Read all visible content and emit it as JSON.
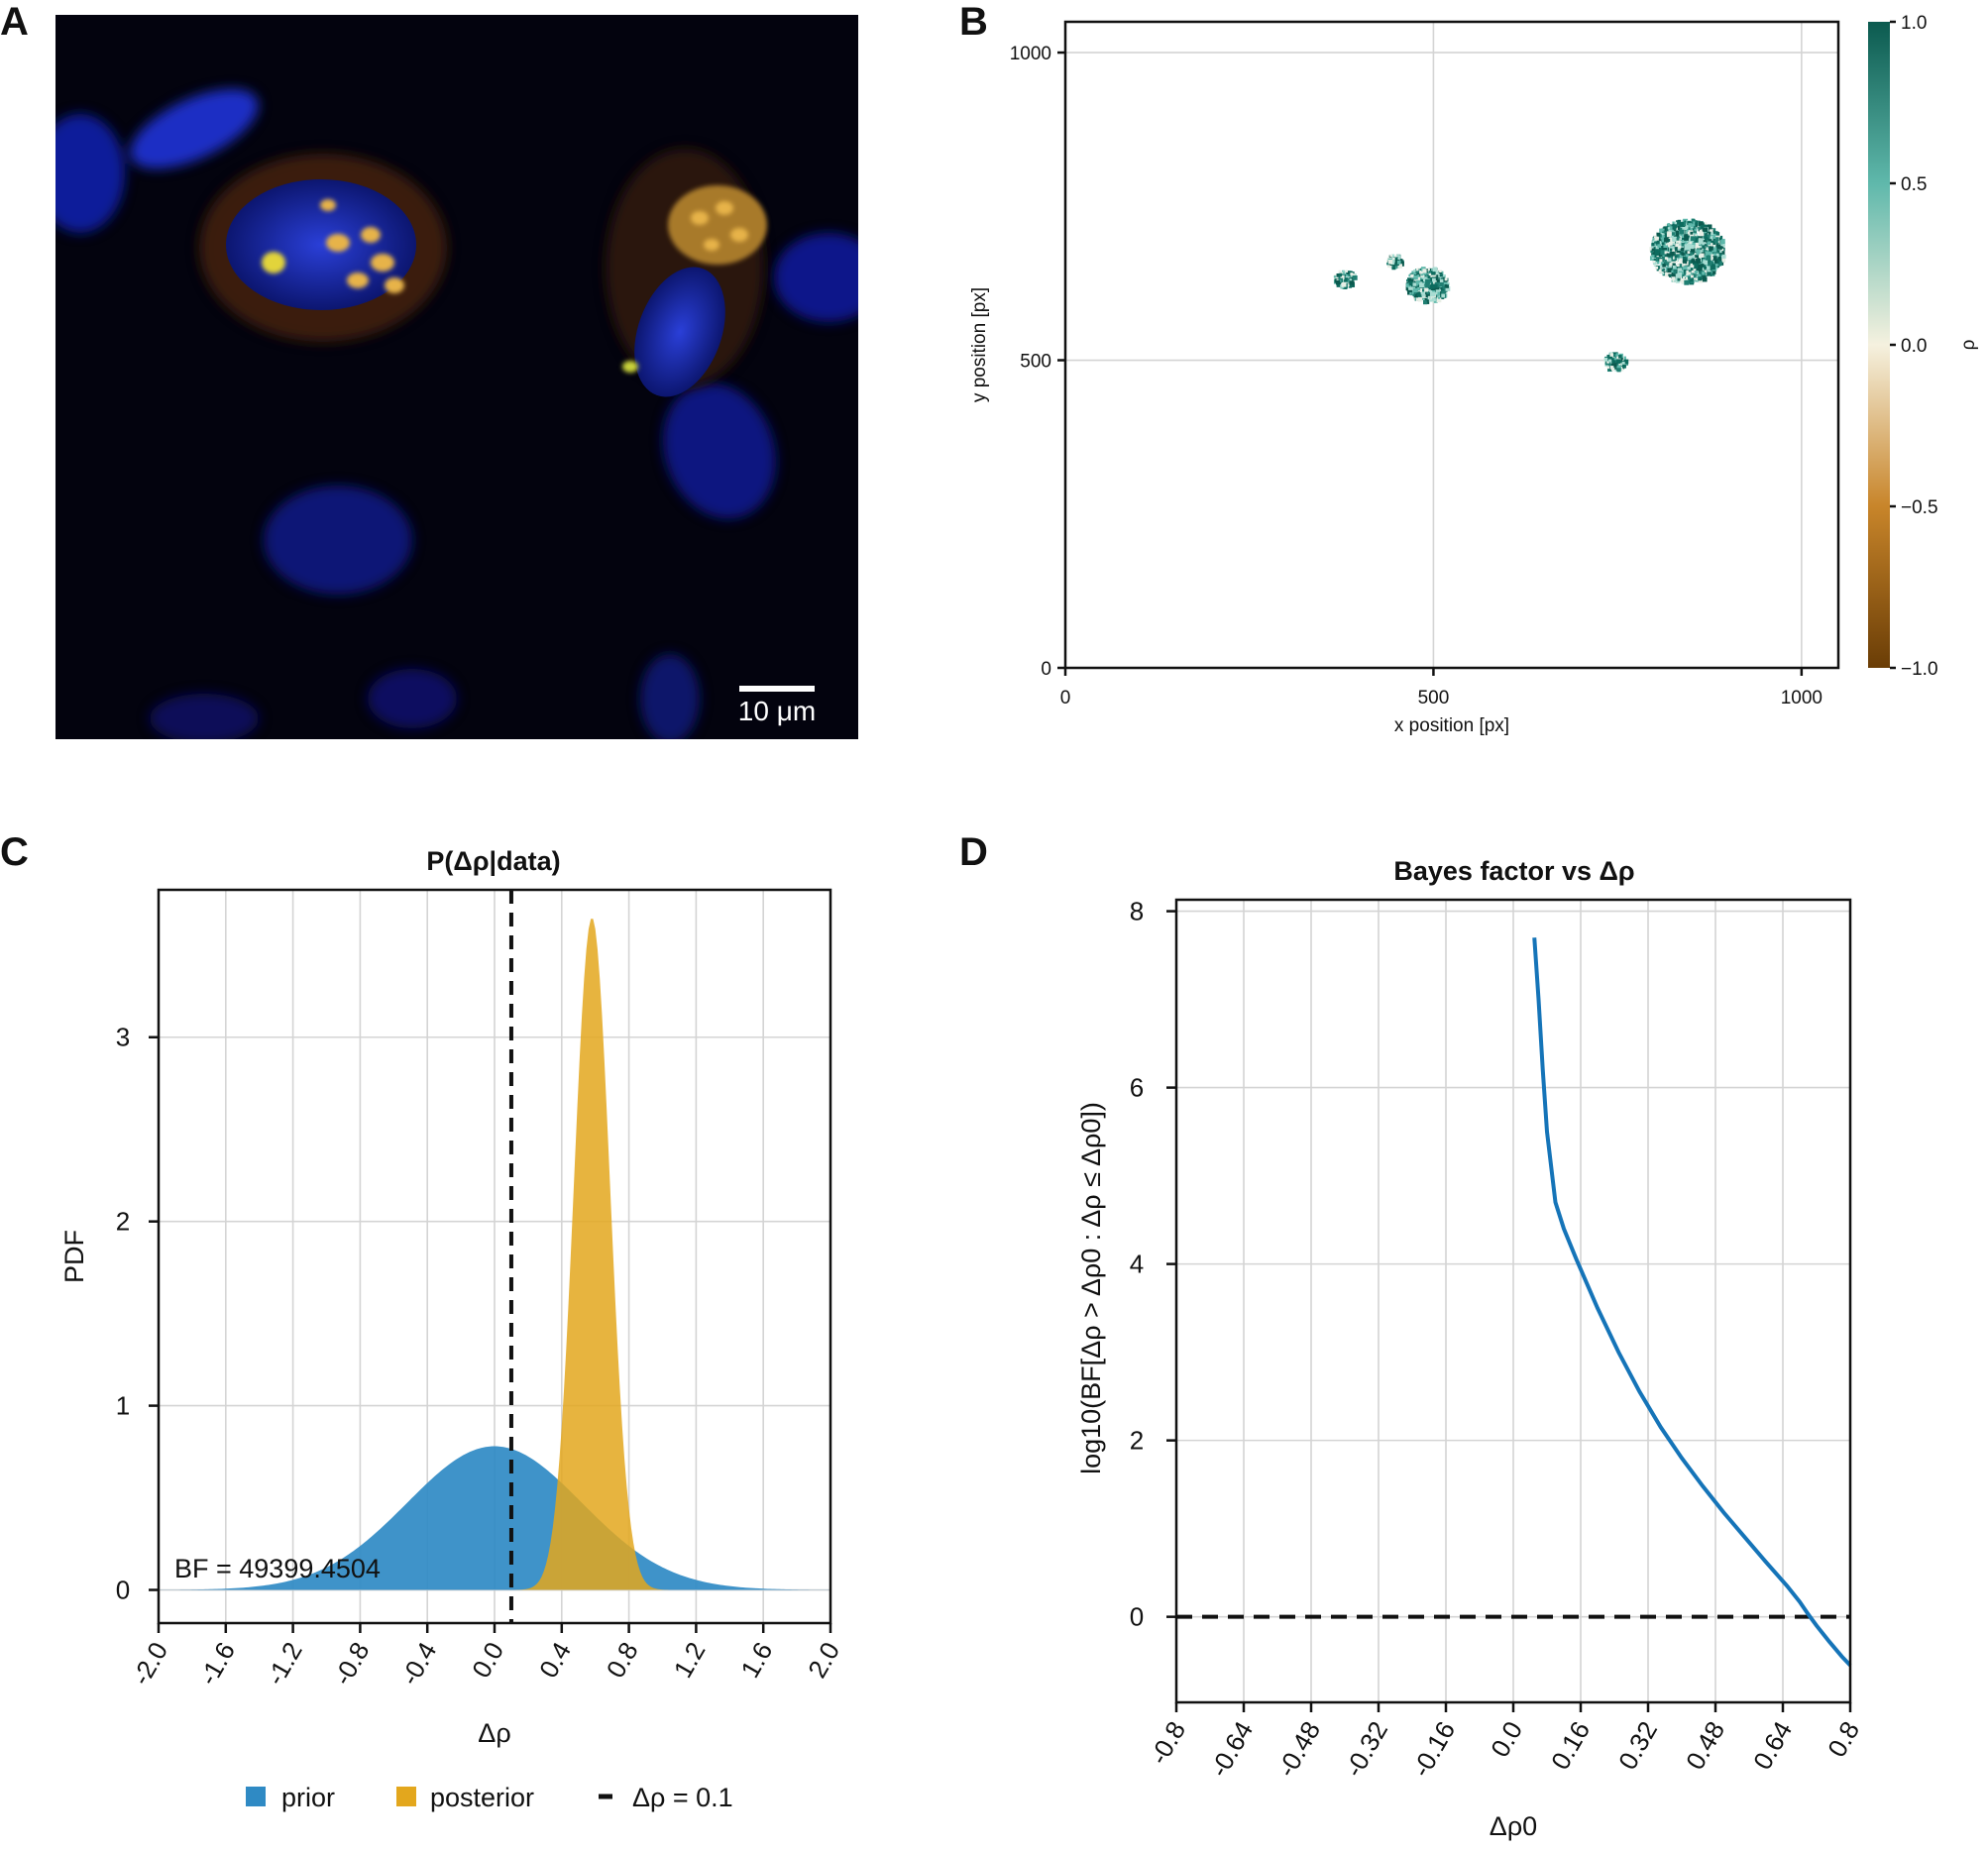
{
  "panels": {
    "a": "A",
    "b": "B",
    "c": "C",
    "d": "D"
  },
  "scale_bar_label": "10 μm",
  "colors": {
    "prior": "#2f8ac4",
    "posterior": "#e3a71d",
    "bf_curve": "#1574b8",
    "cmap_low": "#6a3d06",
    "cmap_mid": "#f5f1df",
    "cmap_high": "#0b5a4f"
  },
  "chart_data": [
    {
      "id": "B",
      "type": "heatmap",
      "title": "",
      "xlabel": "x position [px]",
      "ylabel": "y position [px]",
      "xlim": [
        0,
        1050
      ],
      "ylim": [
        0,
        1050
      ],
      "xticks": [
        0,
        500,
        1000
      ],
      "yticks": [
        0,
        500,
        1000
      ],
      "colorbar": {
        "label": "ρ",
        "range": [
          -1.0,
          1.0
        ],
        "ticks": [
          1.0,
          0.5,
          0.0,
          -0.5,
          -1.0
        ],
        "tick_labels": [
          "1.0",
          "0.5",
          "0.0",
          "−0.5",
          "−1.0"
        ]
      },
      "clusters": [
        {
          "x": 378,
          "y": 635,
          "r": 14
        },
        {
          "x": 445,
          "y": 663,
          "r": 10
        },
        {
          "x": 490,
          "y": 625,
          "r": 28
        },
        {
          "x": 745,
          "y": 500,
          "r": 14
        },
        {
          "x": 843,
          "y": 680,
          "r": 50
        }
      ]
    },
    {
      "id": "C",
      "type": "area",
      "title": "P(Δρ|data)",
      "xlabel": "Δρ",
      "ylabel": "PDF",
      "xlim": [
        -2.0,
        2.0
      ],
      "ylim": [
        -0.18,
        3.8
      ],
      "xticks": [
        -2.0,
        -1.6,
        -1.2,
        -0.8,
        -0.4,
        0.0,
        0.4,
        0.8,
        1.2,
        1.6,
        2.0
      ],
      "xtick_labels": [
        "-2.0",
        "-1.6",
        "-1.2",
        "-0.8",
        "-0.4",
        "0.0",
        "0.4",
        "0.8",
        "1.2",
        "1.6",
        "2.0"
      ],
      "yticks": [
        0,
        1,
        2,
        3
      ],
      "ytick_labels": [
        "0",
        "1",
        "2",
        "3"
      ],
      "series": [
        {
          "name": "prior",
          "distribution": "normal",
          "mean": 0.0,
          "sd": 0.52,
          "peak": 0.78
        },
        {
          "name": "posterior",
          "distribution": "normal",
          "mean": 0.58,
          "sd": 0.107,
          "peak": 3.65
        }
      ],
      "vline": {
        "x": 0.1,
        "style": "dashed"
      },
      "annotation": "BF = 49399.4504",
      "legend": [
        {
          "label": "prior",
          "kind": "patch"
        },
        {
          "label": "posterior",
          "kind": "patch"
        },
        {
          "label": "Δρ = 0.1",
          "kind": "dash"
        }
      ],
      "legend_position": "bottom"
    },
    {
      "id": "D",
      "type": "line",
      "title": "Bayes factor vs Δρ",
      "xlabel": "Δρ0",
      "ylabel": "log10(BF[Δρ > Δρ0 : Δρ ≤ Δρ0])",
      "xlim": [
        -0.8,
        0.8
      ],
      "ylim": [
        -0.97,
        8.13
      ],
      "xticks": [
        -0.8,
        -0.64,
        -0.48,
        -0.32,
        -0.16,
        0.0,
        0.16,
        0.32,
        0.48,
        0.64,
        0.8
      ],
      "xtick_labels": [
        "-0.8",
        "-0.64",
        "-0.48",
        "-0.32",
        "-0.16",
        "0.0",
        "0.16",
        "0.32",
        "0.48",
        "0.64",
        "0.8"
      ],
      "yticks": [
        0,
        2,
        4,
        6,
        8
      ],
      "ytick_labels": [
        "0",
        "2",
        "4",
        "6",
        "8"
      ],
      "hline": {
        "y": 0,
        "style": "dashed"
      },
      "series": [
        {
          "name": "log10 BF",
          "x": [
            0.05,
            0.06,
            0.07,
            0.08,
            0.1,
            0.12,
            0.15,
            0.2,
            0.25,
            0.3,
            0.35,
            0.4,
            0.45,
            0.5,
            0.55,
            0.6,
            0.65,
            0.68,
            0.7,
            0.72,
            0.75,
            0.78,
            0.8
          ],
          "y": [
            7.7,
            7.0,
            6.2,
            5.5,
            4.7,
            4.4,
            4.05,
            3.5,
            3.0,
            2.55,
            2.15,
            1.8,
            1.48,
            1.18,
            0.9,
            0.62,
            0.35,
            0.17,
            0.03,
            -0.1,
            -0.28,
            -0.45,
            -0.55
          ]
        }
      ]
    }
  ]
}
